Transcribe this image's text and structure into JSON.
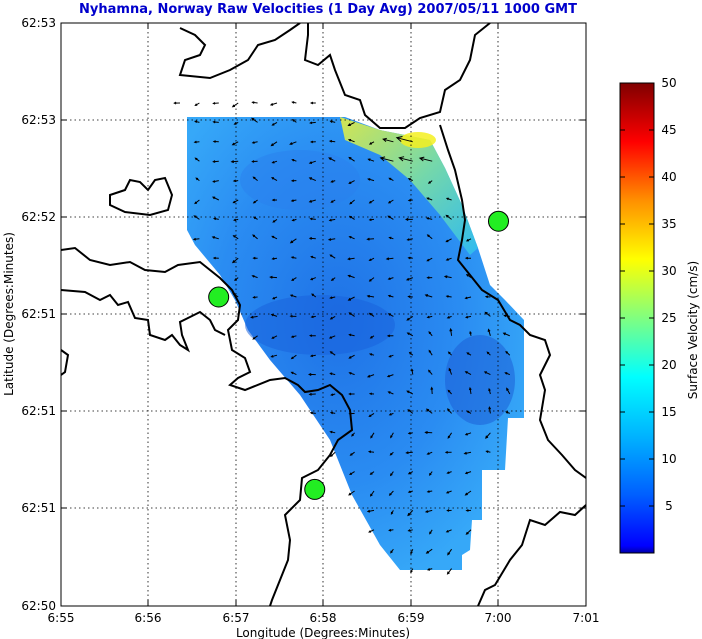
{
  "chart_data": {
    "type": "heatmap",
    "title": "Nyhamna, Norway Raw Velocities (1 Day Avg) 2007/05/11 1000 GMT",
    "xlabel": "Longitude (Degrees:Minutes)",
    "ylabel": "Latitude (Degrees:Minutes)",
    "x_ticks": [
      "6:55",
      "6:56",
      "6:57",
      "6:58",
      "6:59",
      "7:00",
      "7:01"
    ],
    "y_ticks": [
      "62:53",
      "62:53",
      "62:52",
      "62:51",
      "62:51",
      "62:51",
      "62:50"
    ],
    "grid": true,
    "colorbar": {
      "label": "Surface Velocity (cm/s)",
      "ticks": [
        "5",
        "10",
        "15",
        "20",
        "25",
        "30",
        "35",
        "40",
        "45",
        "50"
      ],
      "range": [
        0,
        50
      ],
      "colormap": "jet",
      "position": "right"
    },
    "stations": [
      {
        "lon": 6.9467,
        "lat": 62.8595
      },
      {
        "lon": 6.965,
        "lat": 62.843
      },
      {
        "lon": 7.0,
        "lat": 62.866
      }
    ],
    "colors": {
      "title": "#0000cc",
      "station_fill": "#22ee22",
      "station_stroke": "#000000",
      "coastline": "#000000",
      "grid": "#000000"
    }
  }
}
